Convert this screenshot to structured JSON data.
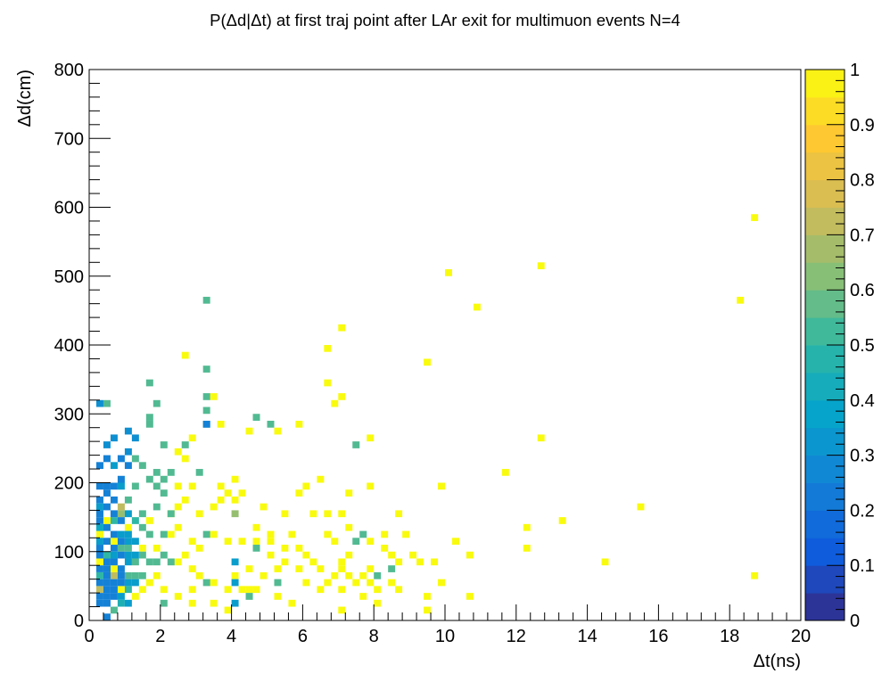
{
  "chart_data": {
    "type": "heatmap",
    "title": "P(Δd|Δt) at first traj point after LAr exit for multimuon events N=4",
    "xlabel": "Δt(ns)",
    "ylabel": "Δd(cm)",
    "xlim": [
      0,
      20
    ],
    "ylim": [
      0,
      800
    ],
    "zlim": [
      0,
      1
    ],
    "bin_width": {
      "x": 0.2,
      "y": 10
    },
    "x_ticks": [
      "0",
      "2",
      "4",
      "6",
      "8",
      "10",
      "12",
      "14",
      "16",
      "18",
      "20"
    ],
    "y_ticks": [
      "0",
      "100",
      "200",
      "300",
      "400",
      "500",
      "600",
      "700",
      "800"
    ],
    "z_ticks": [
      "0",
      "0.1",
      "0.2",
      "0.3",
      "0.4",
      "0.5",
      "0.6",
      "0.7",
      "0.8",
      "0.9",
      "1"
    ],
    "palette": [
      "#352a87",
      "#0f5cdd",
      "#1481d6",
      "#06a4ca",
      "#2eb7a4",
      "#87bf77",
      "#d1bb59",
      "#fec832",
      "#f9fb0e"
    ],
    "cells": [
      [
        18.6,
        580,
        1.0
      ],
      [
        18.2,
        460,
        1.0
      ],
      [
        15.4,
        160,
        1.0
      ],
      [
        14.4,
        80,
        1.0
      ],
      [
        18.6,
        60,
        1.0
      ],
      [
        12.6,
        510,
        1.0
      ],
      [
        12.6,
        260,
        1.0
      ],
      [
        13.2,
        140,
        1.0
      ],
      [
        12.2,
        130,
        1.0
      ],
      [
        12.2,
        100,
        1.0
      ],
      [
        11.6,
        210,
        1.0
      ],
      [
        10.8,
        450,
        1.0
      ],
      [
        10.0,
        500,
        1.0
      ],
      [
        9.4,
        370,
        1.0
      ],
      [
        9.8,
        190,
        1.0
      ],
      [
        10.2,
        110,
        1.0
      ],
      [
        10.6,
        90,
        1.0
      ],
      [
        10.6,
        30,
        1.0
      ],
      [
        9.8,
        50,
        1.0
      ],
      [
        9.4,
        30,
        1.0
      ],
      [
        9.6,
        80,
        1.0
      ],
      [
        9.4,
        10,
        1.0
      ],
      [
        7.0,
        420,
        1.0
      ],
      [
        6.6,
        390,
        1.0
      ],
      [
        6.6,
        340,
        1.0
      ],
      [
        6.8,
        310,
        1.0
      ],
      [
        7.0,
        320,
        1.0
      ],
      [
        7.8,
        260,
        1.0
      ],
      [
        7.2,
        180,
        1.0
      ],
      [
        7.8,
        190,
        1.0
      ],
      [
        6.4,
        200,
        1.0
      ],
      [
        6.0,
        190,
        1.0
      ],
      [
        5.8,
        180,
        1.0
      ],
      [
        6.2,
        150,
        1.0
      ],
      [
        6.6,
        150,
        1.0
      ],
      [
        7.0,
        150,
        1.0
      ],
      [
        8.6,
        150,
        1.0
      ],
      [
        7.2,
        130,
        1.0
      ],
      [
        7.8,
        110,
        1.0
      ],
      [
        8.2,
        120,
        1.0
      ],
      [
        8.8,
        120,
        1.0
      ],
      [
        8.2,
        100,
        1.0
      ],
      [
        8.4,
        90,
        1.0
      ],
      [
        9.0,
        90,
        1.0
      ],
      [
        8.6,
        80,
        1.0
      ],
      [
        9.2,
        80,
        1.0
      ],
      [
        6.6,
        120,
        1.0
      ],
      [
        6.8,
        110,
        1.0
      ],
      [
        7.0,
        80,
        1.0
      ],
      [
        7.2,
        90,
        1.0
      ],
      [
        7.0,
        70,
        1.0
      ],
      [
        6.8,
        60,
        1.0
      ],
      [
        7.2,
        60,
        1.0
      ],
      [
        7.4,
        50,
        1.0
      ],
      [
        6.6,
        50,
        1.0
      ],
      [
        7.0,
        40,
        1.0
      ],
      [
        7.6,
        60,
        1.0
      ],
      [
        7.8,
        70,
        1.0
      ],
      [
        7.8,
        50,
        1.0
      ],
      [
        8.0,
        40,
        1.0
      ],
      [
        8.4,
        50,
        1.0
      ],
      [
        8.6,
        40,
        1.0
      ],
      [
        8.0,
        20,
        1.0
      ],
      [
        7.6,
        30,
        1.0
      ],
      [
        7.0,
        10,
        1.0
      ],
      [
        8.0,
        60,
        0.55
      ],
      [
        7.6,
        120,
        0.55
      ],
      [
        8.4,
        70,
        0.55
      ],
      [
        3.4,
        320,
        1.0
      ],
      [
        3.6,
        280,
        1.0
      ],
      [
        4.4,
        270,
        1.0
      ],
      [
        5.2,
        270,
        1.0
      ],
      [
        5.8,
        280,
        1.0
      ],
      [
        2.6,
        380,
        1.0
      ],
      [
        2.8,
        260,
        1.0
      ],
      [
        2.6,
        230,
        1.0
      ],
      [
        2.4,
        240,
        1.0
      ],
      [
        2.8,
        190,
        1.0
      ],
      [
        2.6,
        170,
        1.0
      ],
      [
        2.4,
        160,
        1.0
      ],
      [
        3.0,
        150,
        1.0
      ],
      [
        3.4,
        160,
        1.0
      ],
      [
        3.6,
        170,
        1.0
      ],
      [
        4.0,
        170,
        1.0
      ],
      [
        4.8,
        160,
        1.0
      ],
      [
        5.4,
        150,
        1.0
      ],
      [
        3.8,
        180,
        1.0
      ],
      [
        4.2,
        180,
        1.0
      ],
      [
        3.6,
        190,
        1.0
      ],
      [
        4.0,
        200,
        1.0
      ],
      [
        2.4,
        190,
        1.0
      ],
      [
        2.2,
        150,
        1.0
      ],
      [
        2.4,
        130,
        1.0
      ],
      [
        2.2,
        120,
        1.0
      ],
      [
        2.8,
        110,
        1.0
      ],
      [
        3.0,
        100,
        1.0
      ],
      [
        3.4,
        120,
        1.0
      ],
      [
        3.8,
        110,
        1.0
      ],
      [
        4.2,
        110,
        1.0
      ],
      [
        4.6,
        110,
        1.0
      ],
      [
        5.0,
        110,
        1.0
      ],
      [
        4.6,
        130,
        1.0
      ],
      [
        5.0,
        120,
        1.0
      ],
      [
        5.6,
        120,
        1.0
      ],
      [
        5.8,
        100,
        1.0
      ],
      [
        6.0,
        90,
        1.0
      ],
      [
        6.2,
        80,
        1.0
      ],
      [
        5.4,
        100,
        1.0
      ],
      [
        5.0,
        90,
        1.0
      ],
      [
        5.4,
        80,
        1.0
      ],
      [
        5.8,
        70,
        1.0
      ],
      [
        4.8,
        60,
        1.0
      ],
      [
        4.4,
        70,
        1.0
      ],
      [
        4.0,
        60,
        1.0
      ],
      [
        4.2,
        40,
        1.0
      ],
      [
        3.8,
        40,
        1.0
      ],
      [
        3.4,
        50,
        1.0
      ],
      [
        3.0,
        60,
        1.0
      ],
      [
        2.8,
        70,
        1.0
      ],
      [
        2.6,
        90,
        1.0
      ],
      [
        2.4,
        80,
        1.0
      ],
      [
        2.8,
        40,
        1.0
      ],
      [
        2.4,
        30,
        1.0
      ],
      [
        2.8,
        20,
        1.0
      ],
      [
        3.4,
        20,
        1.0
      ],
      [
        3.8,
        10,
        1.0
      ],
      [
        4.4,
        40,
        1.0
      ],
      [
        5.2,
        30,
        1.0
      ],
      [
        5.6,
        20,
        1.0
      ],
      [
        6.0,
        50,
        1.0
      ],
      [
        6.4,
        40,
        1.0
      ],
      [
        6.4,
        70,
        1.0
      ],
      [
        5.2,
        70,
        1.0
      ],
      [
        4.6,
        40,
        1.0
      ],
      [
        1.8,
        60,
        1.0
      ],
      [
        2.0,
        40,
        1.0
      ],
      [
        1.6,
        50,
        1.0
      ],
      [
        1.4,
        40,
        1.0
      ],
      [
        1.2,
        30,
        1.0
      ],
      [
        1.8,
        100,
        1.0
      ],
      [
        1.6,
        140,
        1.0
      ],
      [
        1.4,
        100,
        1.0
      ],
      [
        0.6,
        70,
        1.0
      ],
      [
        0.8,
        40,
        1.0
      ],
      [
        0.2,
        80,
        1.0
      ],
      [
        0.2,
        120,
        1.0
      ],
      [
        0.6,
        110,
        1.0
      ],
      [
        0.4,
        140,
        1.0
      ],
      [
        1.0,
        130,
        1.0
      ],
      [
        3.2,
        460,
        0.55
      ],
      [
        3.2,
        360,
        0.55
      ],
      [
        3.2,
        320,
        0.55
      ],
      [
        3.2,
        300,
        0.55
      ],
      [
        3.2,
        280,
        0.55
      ],
      [
        1.6,
        340,
        0.55
      ],
      [
        1.8,
        310,
        0.55
      ],
      [
        0.4,
        310,
        0.55
      ],
      [
        1.6,
        290,
        0.55
      ],
      [
        1.6,
        280,
        0.55
      ],
      [
        4.6,
        290,
        0.55
      ],
      [
        5.0,
        280,
        0.55
      ],
      [
        7.4,
        250,
        0.55
      ],
      [
        2.0,
        250,
        0.55
      ],
      [
        2.6,
        250,
        0.55
      ],
      [
        1.2,
        230,
        0.55
      ],
      [
        1.4,
        220,
        0.55
      ],
      [
        1.8,
        210,
        0.55
      ],
      [
        2.2,
        210,
        0.55
      ],
      [
        3.0,
        210,
        0.55
      ],
      [
        1.6,
        200,
        0.55
      ],
      [
        2.0,
        200,
        0.55
      ],
      [
        1.8,
        190,
        0.55
      ],
      [
        1.2,
        190,
        0.55
      ],
      [
        2.0,
        180,
        0.55
      ],
      [
        1.8,
        160,
        0.55
      ],
      [
        1.4,
        150,
        0.55
      ],
      [
        2.2,
        150,
        0.55
      ],
      [
        1.0,
        170,
        0.55
      ],
      [
        4.0,
        150,
        0.65
      ],
      [
        0.8,
        150,
        0.65
      ],
      [
        1.4,
        130,
        0.55
      ],
      [
        1.6,
        120,
        0.55
      ],
      [
        2.0,
        120,
        0.55
      ],
      [
        3.2,
        120,
        0.55
      ],
      [
        4.6,
        100,
        0.55
      ],
      [
        7.4,
        110,
        0.55
      ],
      [
        1.4,
        90,
        0.55
      ],
      [
        1.6,
        80,
        0.55
      ],
      [
        1.8,
        80,
        0.55
      ],
      [
        2.0,
        90,
        0.55
      ],
      [
        2.2,
        80,
        0.55
      ],
      [
        1.2,
        80,
        0.55
      ],
      [
        1.0,
        60,
        0.55
      ],
      [
        1.2,
        60,
        0.55
      ],
      [
        1.0,
        100,
        0.55
      ],
      [
        0.8,
        100,
        0.55
      ],
      [
        1.4,
        60,
        0.55
      ],
      [
        5.2,
        50,
        0.55
      ],
      [
        4.4,
        30,
        0.55
      ],
      [
        2.0,
        20,
        0.55
      ],
      [
        3.2,
        50,
        0.55
      ],
      [
        0.6,
        10,
        0.55
      ],
      [
        0.8,
        20,
        0.45
      ],
      [
        0.8,
        160,
        0.72
      ],
      [
        0.6,
        60,
        0.72
      ],
      [
        0.2,
        40,
        0.72
      ],
      [
        1.0,
        40,
        0.5
      ],
      [
        0.4,
        90,
        0.5
      ],
      [
        0.2,
        60,
        0.5
      ],
      [
        0.6,
        140,
        0.5
      ],
      [
        1.2,
        140,
        0.5
      ],
      [
        1.0,
        270,
        0.3
      ],
      [
        1.2,
        260,
        0.3
      ],
      [
        1.0,
        240,
        0.3
      ],
      [
        0.6,
        260,
        0.3
      ],
      [
        0.4,
        250,
        0.3
      ],
      [
        0.2,
        310,
        0.3
      ],
      [
        3.2,
        280,
        0.25
      ],
      [
        0.2,
        220,
        0.25
      ],
      [
        0.4,
        230,
        0.25
      ],
      [
        0.8,
        230,
        0.25
      ],
      [
        1.0,
        220,
        0.25
      ],
      [
        0.4,
        190,
        0.25
      ],
      [
        0.2,
        190,
        0.25
      ],
      [
        0.6,
        190,
        0.25
      ],
      [
        0.8,
        200,
        0.25
      ],
      [
        0.4,
        180,
        0.25
      ],
      [
        0.2,
        170,
        0.25
      ],
      [
        0.6,
        170,
        0.25
      ],
      [
        0.4,
        160,
        0.25
      ],
      [
        0.2,
        150,
        0.25
      ],
      [
        0.2,
        140,
        0.25
      ],
      [
        0.6,
        150,
        0.25
      ],
      [
        0.8,
        140,
        0.25
      ],
      [
        0.4,
        130,
        0.25
      ],
      [
        0.6,
        120,
        0.25
      ],
      [
        0.4,
        110,
        0.25
      ],
      [
        0.8,
        110,
        0.25
      ],
      [
        0.6,
        100,
        0.25
      ],
      [
        0.2,
        100,
        0.25
      ],
      [
        0.2,
        90,
        0.25
      ],
      [
        0.4,
        80,
        0.25
      ],
      [
        0.6,
        80,
        0.25
      ],
      [
        0.8,
        90,
        0.25
      ],
      [
        0.4,
        70,
        0.25
      ],
      [
        0.2,
        70,
        0.25
      ],
      [
        0.8,
        70,
        0.25
      ],
      [
        0.4,
        60,
        0.25
      ],
      [
        0.8,
        60,
        0.25
      ],
      [
        0.2,
        50,
        0.25
      ],
      [
        0.4,
        50,
        0.25
      ],
      [
        0.6,
        50,
        0.25
      ],
      [
        0.8,
        50,
        0.25
      ],
      [
        0.4,
        40,
        0.25
      ],
      [
        0.6,
        40,
        0.25
      ],
      [
        0.2,
        30,
        0.25
      ],
      [
        0.4,
        30,
        0.25
      ],
      [
        0.6,
        30,
        0.25
      ],
      [
        0.4,
        20,
        0.25
      ],
      [
        0.2,
        20,
        0.25
      ],
      [
        0.4,
        0,
        0.25
      ],
      [
        1.0,
        110,
        0.35
      ],
      [
        1.0,
        120,
        0.35
      ],
      [
        1.0,
        150,
        0.35
      ],
      [
        1.2,
        110,
        0.35
      ],
      [
        1.2,
        90,
        0.35
      ],
      [
        1.0,
        90,
        0.35
      ],
      [
        1.0,
        80,
        0.35
      ],
      [
        1.0,
        50,
        0.35
      ],
      [
        1.2,
        50,
        0.35
      ],
      [
        0.8,
        30,
        0.35
      ],
      [
        1.0,
        20,
        0.35
      ],
      [
        4.0,
        80,
        0.35
      ],
      [
        4.0,
        50,
        0.35
      ],
      [
        4.0,
        20,
        0.35
      ],
      [
        0.2,
        160,
        0.35
      ],
      [
        0.8,
        190,
        0.35
      ],
      [
        0.6,
        220,
        0.35
      ],
      [
        0.8,
        120,
        0.35
      ],
      [
        0.6,
        90,
        0.35
      ],
      [
        0.2,
        110,
        0.35
      ],
      [
        0.2,
        130,
        0.4
      ]
    ]
  }
}
